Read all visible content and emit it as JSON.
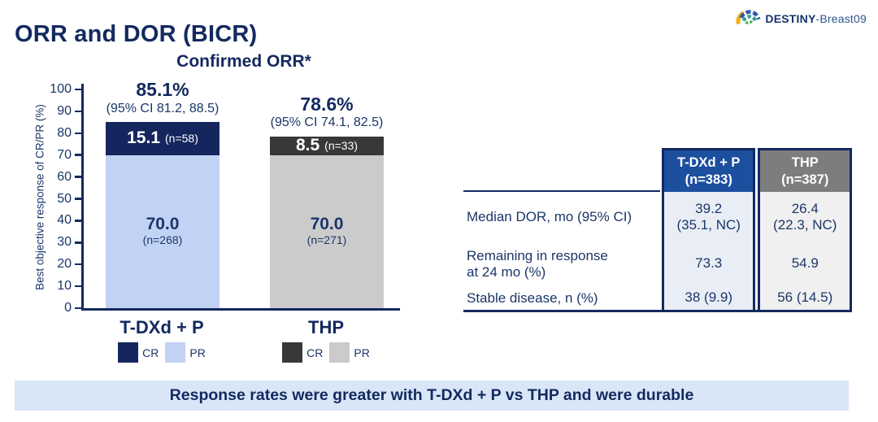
{
  "logo": {
    "brand_bold": "DESTINY",
    "brand_rest": "-Breast09"
  },
  "title": "ORR and DOR (BICR)",
  "chart_data": {
    "type": "bar",
    "stacked": true,
    "title": "Confirmed ORR*",
    "ylabel": "Best objective response of CR/PR (%)",
    "ylim": [
      0,
      100
    ],
    "yticks": [
      100,
      90,
      80,
      70,
      60,
      50,
      40,
      30,
      20,
      10,
      0
    ],
    "grid": false,
    "groups": [
      {
        "label": "T-DXd + P",
        "total_pct_label": "85.1%",
        "ci_label": "(95% CI 81.2, 88.5)",
        "segments": [
          {
            "name": "CR",
            "value": 15.1,
            "value_label": "15.1",
            "n_label": "(n=58)",
            "color": "#15265e",
            "text_color": "#ffffff",
            "label_layout": "inline"
          },
          {
            "name": "PR",
            "value": 70.0,
            "value_label": "70.0",
            "n_label": "(n=268)",
            "color": "#c2d2f4",
            "text_color": "#1b3668",
            "label_layout": "stacked"
          }
        ],
        "legend": [
          {
            "label": "CR",
            "color": "#15265e"
          },
          {
            "label": "PR",
            "color": "#c2d2f4"
          }
        ]
      },
      {
        "label": "THP",
        "total_pct_label": "78.6%",
        "ci_label": "(95% CI 74.1, 82.5)",
        "segments": [
          {
            "name": "CR",
            "value": 8.5,
            "value_label": "8.5",
            "n_label": "(n=33)",
            "color": "#383838",
            "text_color": "#ffffff",
            "label_layout": "inline"
          },
          {
            "name": "PR",
            "value": 70.0,
            "value_label": "70.0",
            "n_label": "(n=271)",
            "color": "#cbcbcb",
            "text_color": "#1b3668",
            "label_layout": "stacked"
          }
        ],
        "legend": [
          {
            "label": "CR",
            "color": "#383838"
          },
          {
            "label": "PR",
            "color": "#cbcbcb"
          }
        ]
      }
    ]
  },
  "table": {
    "columns": [
      {
        "title": "T-DXd + P",
        "subtitle": "(n=383)",
        "header_bg": "#1d4f9f",
        "body_bg": "#e9eef6"
      },
      {
        "title": "THP",
        "subtitle": "(n=387)",
        "header_bg": "#7d7d7d",
        "body_bg": "#f0f0f0"
      }
    ],
    "rows": [
      {
        "label_lines": [
          "Median DOR, mo (95% CI)"
        ],
        "values": [
          [
            "39.2",
            "(35.1, NC)"
          ],
          [
            "26.4",
            "(22.3, NC)"
          ]
        ]
      },
      {
        "label_lines": [
          "Remaining in response",
          "at 24 mo (%)"
        ],
        "values": [
          [
            "73.3"
          ],
          [
            "54.9"
          ]
        ]
      },
      {
        "label_lines": [
          "Stable disease, n (%)"
        ],
        "values": [
          [
            "38 (9.9)"
          ],
          [
            "56 (14.5)"
          ]
        ]
      }
    ]
  },
  "banner": {
    "text": "Response rates were greater with T-DXd + P vs THP and were durable",
    "bg": "#d9e6f8"
  },
  "colors": {
    "navy": "#13295f",
    "text_navy": "#1b3668",
    "banner_bg": "#d9e6f8",
    "tdxd_cr": "#15265e",
    "tdxd_pr": "#c2d2f4",
    "thp_cr": "#383838",
    "thp_pr": "#cbcbcb",
    "table_header_blue": "#1d4f9f",
    "table_header_gray": "#7d7d7d"
  }
}
